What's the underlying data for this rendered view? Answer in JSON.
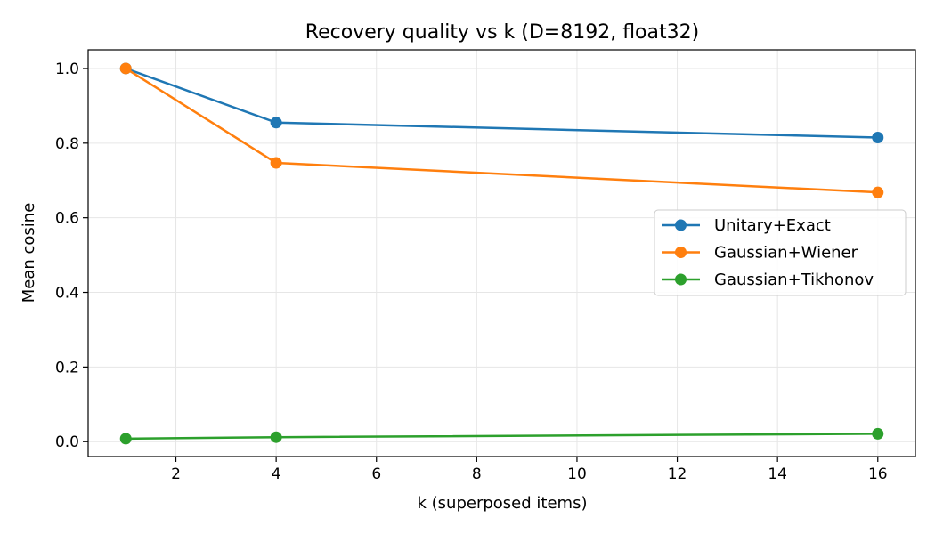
{
  "chart_data": {
    "type": "line",
    "title": "Recovery quality vs k (D=8192, float32)",
    "xlabel": "k (superposed items)",
    "ylabel": "Mean cosine",
    "xlim": [
      0.25,
      16.75
    ],
    "ylim": [
      -0.04,
      1.05
    ],
    "xticks": [
      2,
      4,
      6,
      8,
      10,
      12,
      14,
      16
    ],
    "xtick_labels": [
      "2",
      "4",
      "6",
      "8",
      "10",
      "12",
      "14",
      "16"
    ],
    "yticks": [
      0.0,
      0.2,
      0.4,
      0.6,
      0.8,
      1.0
    ],
    "ytick_labels": [
      "0.0",
      "0.2",
      "0.4",
      "0.6",
      "0.8",
      "1.0"
    ],
    "grid": true,
    "legend_position": "center-right",
    "series": [
      {
        "name": "Unitary+Exact",
        "color": "#1f77b4",
        "x": [
          1,
          4,
          16
        ],
        "y": [
          1.0,
          0.855,
          0.815
        ]
      },
      {
        "name": "Gaussian+Wiener",
        "color": "#ff7f0e",
        "x": [
          1,
          4,
          16
        ],
        "y": [
          1.0,
          0.747,
          0.668
        ]
      },
      {
        "name": "Gaussian+Tikhonov",
        "color": "#2ca02c",
        "x": [
          1,
          4,
          16
        ],
        "y": [
          0.008,
          0.012,
          0.021
        ]
      }
    ]
  }
}
